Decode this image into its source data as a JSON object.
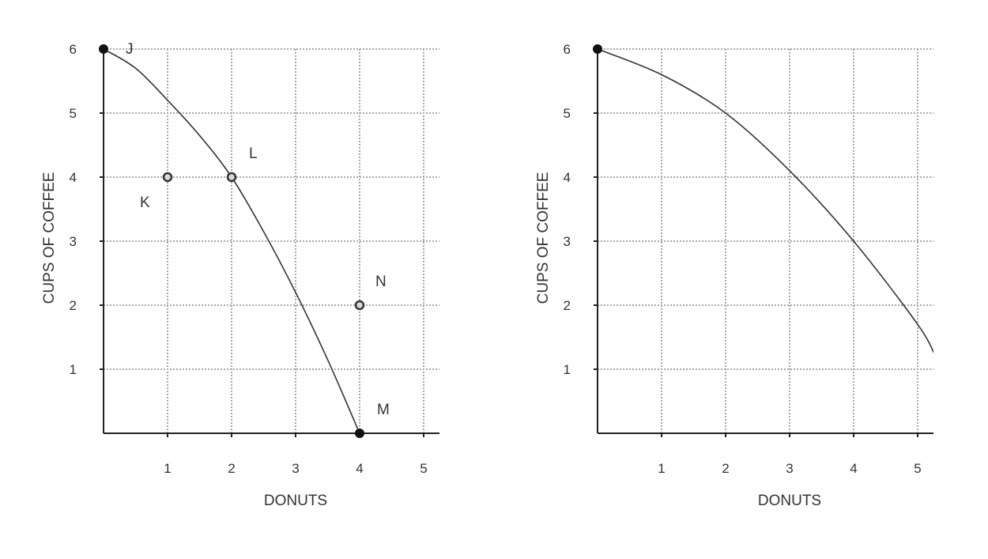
{
  "chart_data": [
    {
      "type": "line",
      "title": "",
      "xlabel": "DONUTS",
      "ylabel": "CUPS OF COFFEE",
      "xlim": [
        0,
        5.25
      ],
      "ylim": [
        0,
        6
      ],
      "x_ticks": [
        "1",
        "2",
        "3",
        "4",
        "5"
      ],
      "y_ticks": [
        "1",
        "2",
        "3",
        "4",
        "5",
        "6"
      ],
      "grid": true,
      "series": [
        {
          "points": [
            {
              "x": 0,
              "y": 6
            },
            {
              "x": 0.5,
              "y": 5.7
            },
            {
              "x": 1,
              "y": 5.2
            },
            {
              "x": 1.5,
              "y": 4.65
            },
            {
              "x": 2,
              "y": 4
            },
            {
              "x": 2.5,
              "y": 3.15
            },
            {
              "x": 3,
              "y": 2.2
            },
            {
              "x": 3.5,
              "y": 1.15
            },
            {
              "x": 4,
              "y": 0
            }
          ]
        }
      ],
      "markers": [
        {
          "label": "J",
          "x": 0,
          "y": 6,
          "style": "solid"
        },
        {
          "label": "K",
          "x": 1,
          "y": 4,
          "style": "hollow"
        },
        {
          "label": "L",
          "x": 2,
          "y": 4,
          "style": "hollow"
        },
        {
          "label": "N",
          "x": 4,
          "y": 2,
          "style": "hollow"
        },
        {
          "label": "M",
          "x": 4,
          "y": 0,
          "style": "solid"
        }
      ]
    },
    {
      "type": "line",
      "title": "",
      "xlabel": "DONUTS",
      "ylabel": "CUPS OF COFFEE",
      "xlim": [
        0,
        5.25
      ],
      "ylim": [
        0,
        6
      ],
      "x_ticks": [
        "1",
        "2",
        "3",
        "4",
        "5"
      ],
      "y_ticks": [
        "1",
        "2",
        "3",
        "4",
        "5",
        "6"
      ],
      "grid": true,
      "series": [
        {
          "points": [
            {
              "x": 0,
              "y": 6
            },
            {
              "x": 1,
              "y": 5.6
            },
            {
              "x": 2,
              "y": 5
            },
            {
              "x": 3,
              "y": 4.1
            },
            {
              "x": 4,
              "y": 3
            },
            {
              "x": 5,
              "y": 1.7
            },
            {
              "x": 5.28,
              "y": 1.2
            }
          ]
        }
      ],
      "markers": [
        {
          "label": "",
          "x": 0,
          "y": 6,
          "style": "solid"
        }
      ]
    }
  ]
}
